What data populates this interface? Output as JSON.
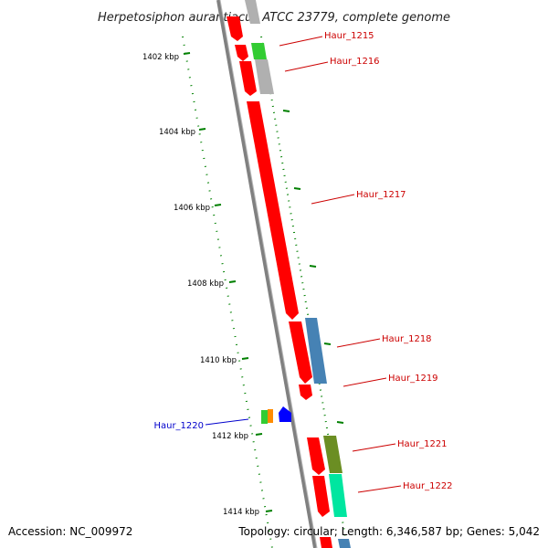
{
  "title": "Herpetosiphon aurantiacus ATCC 23779, complete genome",
  "accession": "Accession: NC_009972",
  "summary": "Topology: circular; Length: 6,346,587 bp; Genes: 5,042",
  "scale_labels": [
    "1402 kbp",
    "1404 kbp",
    "1406 kbp",
    "1408 kbp",
    "1410 kbp",
    "1412 kbp",
    "1414 kbp"
  ],
  "gene_labels": [
    {
      "name": "Haur_1215",
      "color": "#cc0000"
    },
    {
      "name": "Haur_1216",
      "color": "#cc0000"
    },
    {
      "name": "Haur_1217",
      "color": "#cc0000"
    },
    {
      "name": "Haur_1218",
      "color": "#cc0000"
    },
    {
      "name": "Haur_1219",
      "color": "#cc0000"
    },
    {
      "name": "Haur_1220",
      "color": "#0000cc"
    },
    {
      "name": "Haur_1221",
      "color": "#cc0000"
    },
    {
      "name": "Haur_1222",
      "color": "#cc0000"
    }
  ],
  "colors": {
    "forward_gene": "#ff0000",
    "reverse_gene": "#0000ff",
    "backbone": "#808080",
    "tick": "#008000",
    "cog_gray": "#b0b0b0",
    "cog_green": "#33cc33",
    "cog_steelblue": "#4682b4",
    "cog_olive": "#6b8e23",
    "cog_aquamarine": "#00e6a0",
    "cog_orange": "#ff8c00"
  }
}
